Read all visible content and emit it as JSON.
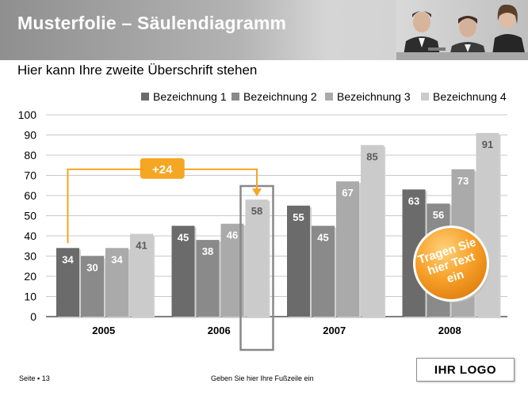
{
  "header": {
    "title": "Musterfolie – Säulendiagramm"
  },
  "subtitle": "Hier kann Ihre zweite Überschrift stehen",
  "footer": {
    "page": "Seite ▪ 13",
    "text": "Geben Sie hier Ihre Fußzeile ein",
    "logo": "IHR LOGO"
  },
  "callouts": {
    "delta_label": "+24",
    "badge_text": [
      "Tragen Sie",
      "hier Text",
      "ein"
    ]
  },
  "colors": {
    "series": [
      "#6b6b6b",
      "#8a8a8a",
      "#aaaaaa",
      "#cbcbcb"
    ],
    "accent": "#f5a623",
    "badge": "#f39a1e"
  },
  "chart_data": {
    "type": "bar",
    "categories": [
      "2005",
      "2006",
      "2007",
      "2008"
    ],
    "series": [
      {
        "name": "Bezeichnung 1",
        "values": [
          34,
          45,
          55,
          63
        ]
      },
      {
        "name": "Bezeichnung 2",
        "values": [
          30,
          38,
          45,
          56
        ]
      },
      {
        "name": "Bezeichnung 3",
        "values": [
          34,
          46,
          67,
          73
        ]
      },
      {
        "name": "Bezeichnung 4",
        "values": [
          41,
          58,
          85,
          91
        ]
      }
    ],
    "ylim": [
      0,
      100
    ],
    "yticks": [
      0,
      10,
      20,
      30,
      40,
      50,
      60,
      70,
      80,
      90,
      100
    ],
    "grid": true,
    "legend": "top-right",
    "title": "",
    "xlabel": "",
    "ylabel": ""
  }
}
